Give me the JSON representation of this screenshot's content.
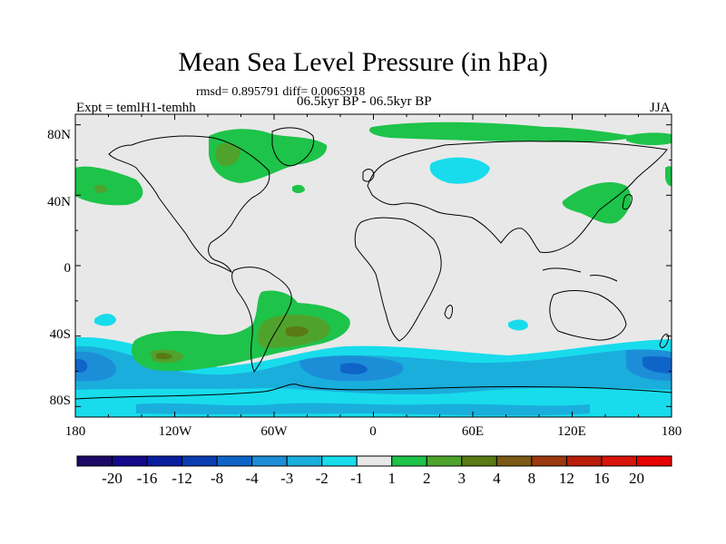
{
  "map": {
    "title": "Mean Sea Level Pressure (in hPa)",
    "stats": "rmsd= 0.895791 diff= 0.0065918",
    "expt": "Expt = temlH1-temhh",
    "period": "06.5kyr BP - 06.5kyr BP",
    "season": "JJA",
    "lat_labels": [
      "80N",
      "40N",
      "0",
      "40S",
      "80S"
    ],
    "lon_labels": [
      "180",
      "120W",
      "60W",
      "0",
      "60E",
      "120E",
      "180"
    ]
  },
  "colorbar": {
    "labels": [
      "-20",
      "-16",
      "-12",
      "-8",
      "-4",
      "-3",
      "-2",
      "-1",
      "1",
      "2",
      "3",
      "4",
      "8",
      "12",
      "16",
      "20"
    ],
    "colors": [
      "#1d0a66",
      "#150a8c",
      "#0a1ea0",
      "#0a3cb4",
      "#0f64c8",
      "#1c8ed8",
      "#1aaedc",
      "#18dcec",
      "#e8e8e8",
      "#1ec34a",
      "#4fa32c",
      "#5a7a14",
      "#7a5a14",
      "#9a3a0e",
      "#b81e0a",
      "#d8140a",
      "#e60000"
    ]
  },
  "colors": {
    "land_neutral": "#e8e8e8",
    "pos1": "#1ec34a",
    "pos2": "#4fa32c",
    "pos3": "#5a7a14",
    "neg1": "#18dcec",
    "neg2": "#1aaedc",
    "neg3": "#1c8ed8",
    "neg4": "#0f64c8"
  }
}
